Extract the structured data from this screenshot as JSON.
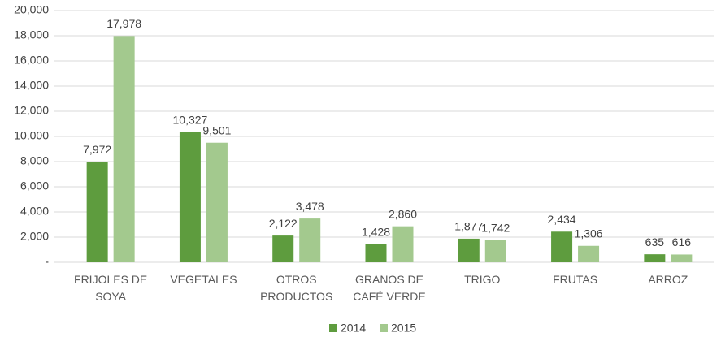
{
  "chart_data": {
    "type": "bar",
    "categories": [
      "FRIJOLES DE\nSOYA",
      "VEGETALES",
      "OTROS\nPRODUCTOS",
      "GRANOS DE\nCAFÉ VERDE",
      "TRIGO",
      "FRUTAS",
      "ARROZ"
    ],
    "series": [
      {
        "name": "2014",
        "color": "#5e9c3e",
        "values": [
          7972,
          10327,
          2122,
          1428,
          1877,
          2434,
          635
        ],
        "value_labels": [
          "7,972",
          "10,327",
          "2,122",
          "1,428",
          "1,877",
          "2,434",
          "635"
        ]
      },
      {
        "name": "2015",
        "color": "#a3c98e",
        "values": [
          17978,
          9501,
          3478,
          2860,
          1742,
          1306,
          616
        ],
        "value_labels": [
          "17,978",
          "9,501",
          "3,478",
          "2,860",
          "1,742",
          "1,306",
          "616"
        ]
      }
    ],
    "ylim": [
      0,
      20000
    ],
    "yticks": [
      {
        "value": 0,
        "label": "-"
      },
      {
        "value": 2000,
        "label": "2,000"
      },
      {
        "value": 4000,
        "label": "4,000"
      },
      {
        "value": 6000,
        "label": "6,000"
      },
      {
        "value": 8000,
        "label": "8,000"
      },
      {
        "value": 10000,
        "label": "10,000"
      },
      {
        "value": 12000,
        "label": "12,000"
      },
      {
        "value": 14000,
        "label": "14,000"
      },
      {
        "value": 16000,
        "label": "16,000"
      },
      {
        "value": 18000,
        "label": "18,000"
      },
      {
        "value": 20000,
        "label": "20,000"
      }
    ],
    "grid": true,
    "legend": "bottom"
  }
}
